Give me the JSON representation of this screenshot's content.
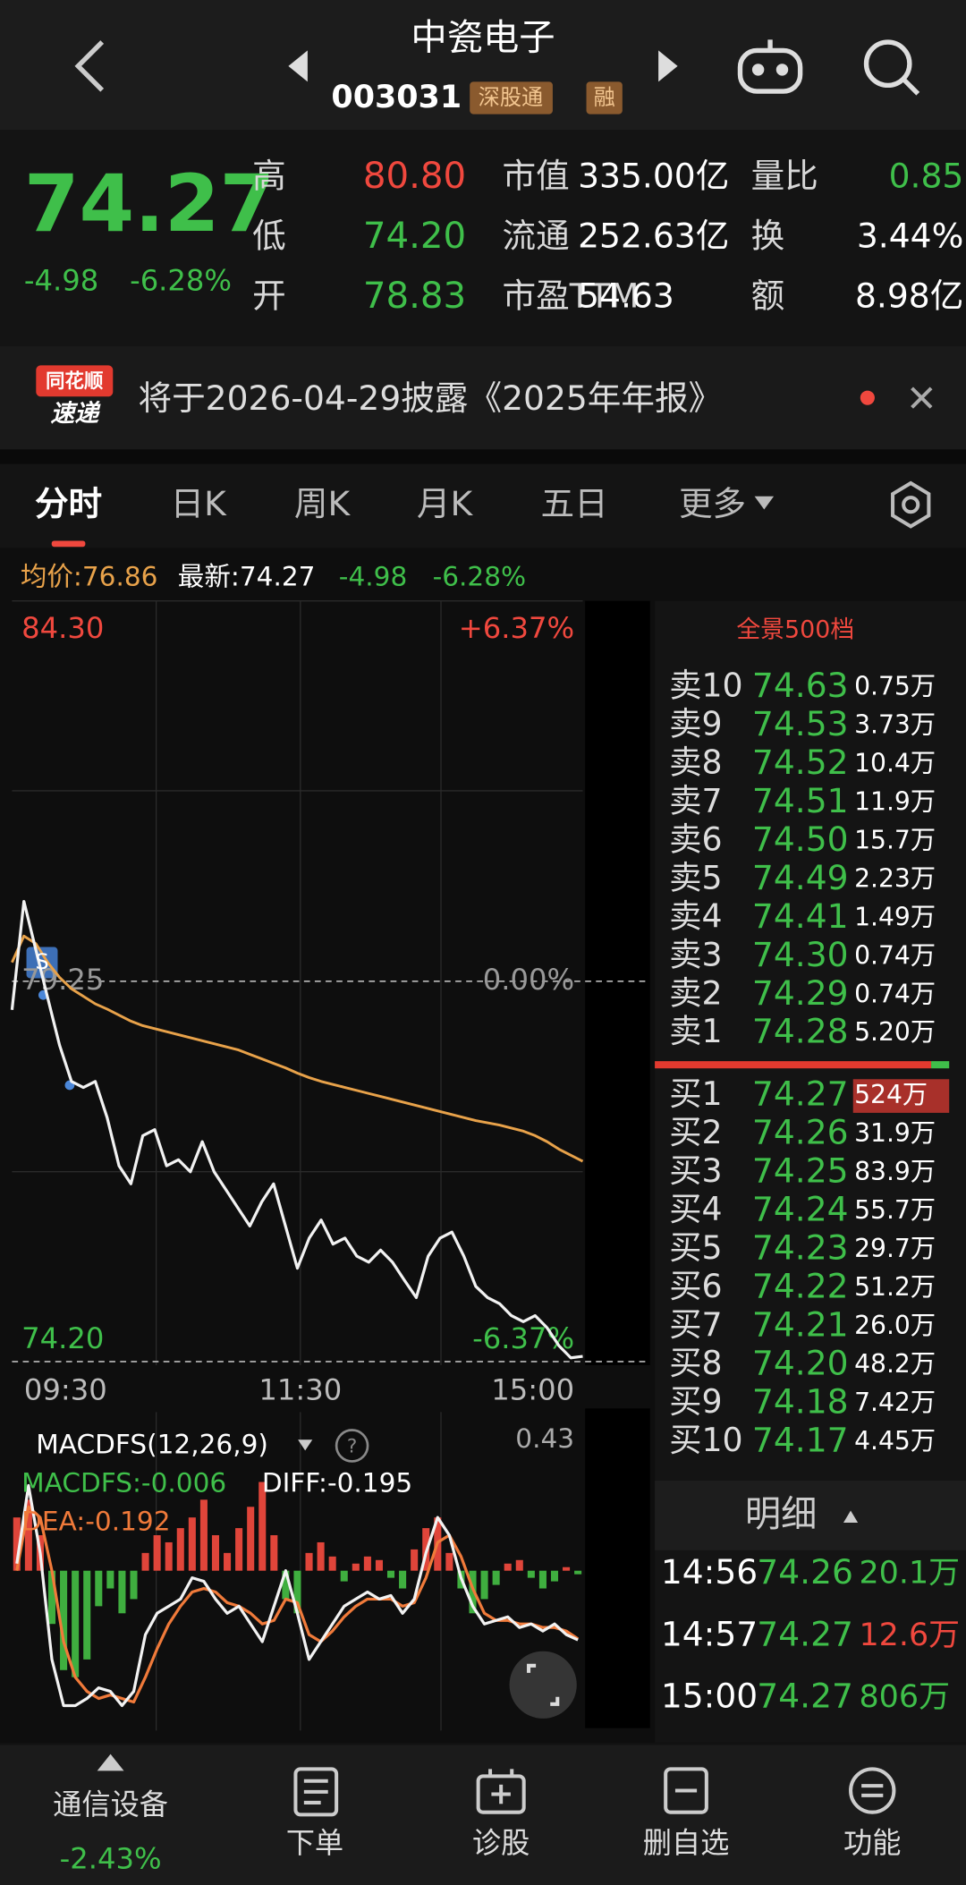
{
  "header": {
    "title": "中瓷电子",
    "code": "003031",
    "tags": [
      "深股通",
      "融"
    ]
  },
  "quote": {
    "price": "74.27",
    "change": "-4.98",
    "change_pct": "-6.28%",
    "stats": [
      {
        "label": "高",
        "value": "80.80",
        "color": "#f0483e"
      },
      {
        "label": "低",
        "value": "74.20",
        "color": "#3fbf4a"
      },
      {
        "label": "开",
        "value": "78.83",
        "color": "#3fbf4a"
      },
      {
        "label": "市值",
        "value": "335.00亿",
        "color": "#ffffff"
      },
      {
        "label": "流通",
        "value": "252.63亿",
        "color": "#ffffff"
      },
      {
        "label": "市盈TTM",
        "value": "54.63",
        "color": "#ffffff"
      },
      {
        "label": "量比",
        "value": "0.85",
        "color": "#3fbf4a"
      },
      {
        "label": "换",
        "value": "3.44%",
        "color": "#ffffff"
      },
      {
        "label": "额",
        "value": "8.98亿",
        "color": "#ffffff"
      }
    ]
  },
  "news": {
    "badge_top": "同花顺",
    "badge_bottom": "速递",
    "text": "将于2026-04-29披露《2025年年报》"
  },
  "tabs": [
    "分时",
    "日K",
    "周K",
    "月K",
    "五日",
    "更多"
  ],
  "info_line": {
    "avg": "均价:76.86",
    "latest": "最新:74.27",
    "change": "-4.98",
    "change_pct": "-6.28%"
  },
  "chart": {
    "ylim": [
      74.2,
      84.3
    ],
    "yticks": [
      {
        "value": 74.2,
        "label": "74.20"
      },
      {
        "value": 79.25,
        "label": "79.25"
      },
      {
        "value": 84.3,
        "label": "84.30"
      }
    ],
    "pct_labels": [
      "-6.37%",
      "0.00%",
      "+6.37%"
    ],
    "time_labels": [
      "09:30",
      "11:30",
      "15:00"
    ],
    "signal": "S",
    "price": [
      78.87,
      80.31,
      79.67,
      79.03,
      78.4,
      77.92,
      77.84,
      77.92,
      77.44,
      76.8,
      76.56,
      77.2,
      77.28,
      76.8,
      76.88,
      76.72,
      77.12,
      76.72,
      76.48,
      76.24,
      76.0,
      76.32,
      76.56,
      76.0,
      75.44,
      75.84,
      76.08,
      75.76,
      75.84,
      75.6,
      75.52,
      75.68,
      75.52,
      75.28,
      75.05,
      75.6,
      75.84,
      75.92,
      75.6,
      75.2,
      75.05,
      74.97,
      74.81,
      74.73,
      74.81,
      74.65,
      74.41,
      74.25,
      74.27
    ],
    "avg": [
      79.5,
      79.85,
      79.75,
      79.5,
      79.3,
      79.15,
      79.05,
      78.95,
      78.88,
      78.8,
      78.72,
      78.66,
      78.62,
      78.58,
      78.54,
      78.5,
      78.46,
      78.42,
      78.38,
      78.34,
      78.28,
      78.22,
      78.16,
      78.1,
      78.03,
      77.97,
      77.92,
      77.88,
      77.84,
      77.8,
      77.76,
      77.72,
      77.68,
      77.64,
      77.6,
      77.56,
      77.52,
      77.48,
      77.44,
      77.4,
      77.37,
      77.34,
      77.3,
      77.26,
      77.2,
      77.12,
      77.02,
      76.94,
      76.86
    ]
  },
  "macd": {
    "title": "MACDFS(12,26,9)",
    "macdfs": "MACDFS:-0.006",
    "diff": "DIFF:-0.195",
    "dea": "DEA:-0.192",
    "ylim": [
      -0.43,
      0.43
    ],
    "hist": [
      0.15,
      0.2,
      0.1,
      -0.15,
      -0.28,
      -0.3,
      -0.25,
      -0.1,
      -0.05,
      -0.12,
      -0.08,
      0.05,
      0.1,
      0.08,
      0.12,
      0.15,
      0.2,
      0.1,
      0.05,
      0.12,
      0.18,
      0.25,
      0.1,
      -0.08,
      -0.12,
      0.05,
      0.08,
      0.04,
      -0.03,
      0.02,
      0.04,
      0.03,
      -0.02,
      -0.05,
      0.06,
      0.12,
      0.15,
      0.05,
      -0.05,
      -0.12,
      -0.08,
      -0.04,
      0.02,
      0.03,
      -0.02,
      -0.05,
      -0.03,
      0.01,
      -0.01
    ],
    "diff_line": [
      0.02,
      0.24,
      0.05,
      -0.25,
      -0.38,
      -0.38,
      -0.36,
      -0.33,
      -0.34,
      -0.38,
      -0.34,
      -0.18,
      -0.12,
      -0.1,
      -0.08,
      -0.02,
      -0.03,
      -0.08,
      -0.12,
      -0.1,
      -0.15,
      -0.2,
      -0.1,
      0.0,
      -0.12,
      -0.25,
      -0.2,
      -0.15,
      -0.1,
      -0.08,
      -0.06,
      -0.08,
      -0.07,
      -0.12,
      -0.08,
      0.05,
      0.15,
      0.1,
      -0.02,
      -0.1,
      -0.15,
      -0.14,
      -0.13,
      -0.16,
      -0.15,
      -0.17,
      -0.15,
      -0.18,
      -0.195
    ],
    "dea_line": [
      0.0,
      0.18,
      0.15,
      0.0,
      -0.2,
      -0.3,
      -0.34,
      -0.36,
      -0.35,
      -0.36,
      -0.37,
      -0.3,
      -0.22,
      -0.15,
      -0.1,
      -0.06,
      -0.05,
      -0.06,
      -0.09,
      -0.1,
      -0.12,
      -0.15,
      -0.14,
      -0.08,
      -0.09,
      -0.18,
      -0.2,
      -0.17,
      -0.13,
      -0.1,
      -0.08,
      -0.08,
      -0.08,
      -0.1,
      -0.09,
      -0.02,
      0.08,
      0.1,
      0.04,
      -0.05,
      -0.12,
      -0.14,
      -0.14,
      -0.15,
      -0.15,
      -0.16,
      -0.16,
      -0.17,
      -0.192
    ]
  },
  "order_book": {
    "title": "全景500档",
    "asks": [
      [
        "卖10",
        "74.63",
        "0.75万"
      ],
      [
        "卖9",
        "74.53",
        "3.73万"
      ],
      [
        "卖8",
        "74.52",
        "10.4万"
      ],
      [
        "卖7",
        "74.51",
        "11.9万"
      ],
      [
        "卖6",
        "74.50",
        "15.7万"
      ],
      [
        "卖5",
        "74.49",
        "2.23万"
      ],
      [
        "卖4",
        "74.41",
        "1.49万"
      ],
      [
        "卖3",
        "74.30",
        "0.74万"
      ],
      [
        "卖2",
        "74.29",
        "0.74万"
      ],
      [
        "卖1",
        "74.28",
        "5.20万"
      ]
    ],
    "bids": [
      [
        "买1",
        "74.27",
        "524万"
      ],
      [
        "买2",
        "74.26",
        "31.9万"
      ],
      [
        "买3",
        "74.25",
        "83.9万"
      ],
      [
        "买4",
        "74.24",
        "55.7万"
      ],
      [
        "买5",
        "74.23",
        "29.7万"
      ],
      [
        "买6",
        "74.22",
        "51.2万"
      ],
      [
        "买7",
        "74.21",
        "26.0万"
      ],
      [
        "买8",
        "74.20",
        "48.2万"
      ],
      [
        "买9",
        "74.18",
        "7.42万"
      ],
      [
        "买10",
        "74.17",
        "4.45万"
      ]
    ]
  },
  "details": {
    "title": "明细",
    "rows": [
      {
        "time": "14:56",
        "price": "74.26",
        "volume": "20.1万",
        "color": "#3fbf4a"
      },
      {
        "time": "14:57",
        "price": "74.27",
        "volume": "12.6万",
        "color": "#f0483e"
      },
      {
        "time": "15:00",
        "price": "74.27",
        "volume": "806万",
        "color": "#3fbf4a"
      }
    ]
  },
  "bottom_nav": {
    "sector": "通信设备",
    "sector_change": "-2.43%",
    "items": [
      "下单",
      "诊股",
      "删自选",
      "功能"
    ]
  }
}
